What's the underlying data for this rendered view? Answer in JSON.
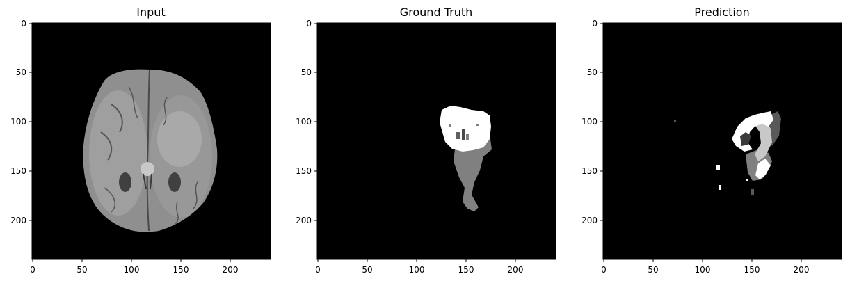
{
  "figure": {
    "background": "#ffffff",
    "image_background": "#000000"
  },
  "panels": [
    {
      "title": "Input",
      "content": "grayscale axial brain MRI slice",
      "x_ticks": [
        "0",
        "50",
        "100",
        "150",
        "200"
      ],
      "y_ticks": [
        "0",
        "50",
        "100",
        "150",
        "200"
      ]
    },
    {
      "title": "Ground Truth",
      "content": "tumor segmentation mask (white, gray regions)",
      "x_ticks": [
        "0",
        "50",
        "100",
        "150",
        "200"
      ],
      "y_ticks": [
        "0",
        "50",
        "100",
        "150",
        "200"
      ]
    },
    {
      "title": "Prediction",
      "content": "predicted segmentation mask (white, light gray, dark gray regions)",
      "x_ticks": [
        "0",
        "50",
        "100",
        "150",
        "200"
      ],
      "y_ticks": [
        "0",
        "50",
        "100",
        "150",
        "200"
      ]
    }
  ],
  "mask_colors": {
    "white": "#ffffff",
    "light_gray": "#c8c8c8",
    "gray": "#808080",
    "dark_gray": "#595959",
    "black": "#000000"
  }
}
